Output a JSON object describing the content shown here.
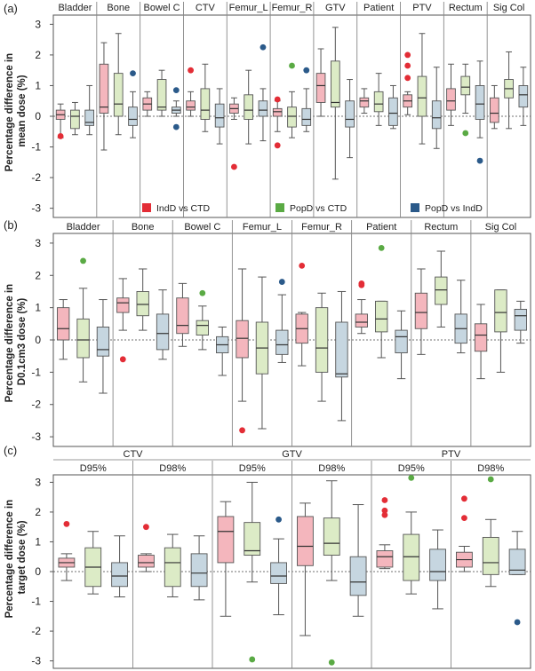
{
  "colors": {
    "IndD": "#f4b6bd",
    "PopD": "#dcebc6",
    "IndD2": "#c6d6e0",
    "IndDOut": "#e32d36",
    "PopDOut": "#5aaa44",
    "IndD2Out": "#2b5a8a"
  },
  "chart_data": [
    {
      "type": "boxplot",
      "panel_label": "(a)",
      "ylabel_lines": [
        "Percentage difference in",
        "mean dose (%)"
      ],
      "ylim": [
        -3.3,
        3.3
      ],
      "yticks": [
        -3,
        -2,
        -1,
        0,
        1,
        2,
        3
      ],
      "legend": [
        {
          "name": "IndD vs CTD",
          "color": "#e32d36"
        },
        {
          "name": "PopD vs CTD",
          "color": "#5aaa44"
        },
        {
          "name": "PopD vs IndD",
          "color": "#2b5a8a"
        }
      ],
      "categories": [
        "Bladder",
        "Bone",
        "Bowel C",
        "CTV",
        "Femur_L",
        "Femur_R",
        "GTV",
        "Patient",
        "PTV",
        "Rectum",
        "Sig Col"
      ],
      "boxes": [
        [
          [
            -0.7,
            -0.1,
            0.05,
            0.2,
            0.4,
            [
              -0.65
            ]
          ],
          [
            -0.6,
            -0.4,
            0,
            0.2,
            0.45,
            []
          ],
          [
            -0.6,
            -0.3,
            -0.2,
            0.2,
            1.0,
            []
          ]
        ],
        [
          [
            -1.1,
            0.1,
            0.3,
            1.7,
            2.4,
            []
          ],
          [
            -0.6,
            0,
            0.4,
            1.4,
            2.7,
            []
          ],
          [
            -0.7,
            -0.3,
            -0.1,
            0.3,
            0.8,
            [
              1.4
            ]
          ]
        ],
        [
          [
            0,
            0.2,
            0.4,
            0.6,
            0.8,
            []
          ],
          [
            0,
            0.2,
            0.3,
            1.2,
            1.5,
            []
          ],
          [
            0,
            0.1,
            0.2,
            0.3,
            0.5,
            [
              0.85,
              -0.35
            ]
          ]
        ],
        [
          [
            0,
            0.2,
            0.3,
            0.5,
            0.8,
            [
              1.5
            ]
          ],
          [
            -0.5,
            -0.1,
            0.2,
            0.9,
            1.7,
            []
          ],
          [
            -0.9,
            -0.35,
            -0.05,
            0.4,
            0.9,
            []
          ]
        ],
        [
          [
            -0.1,
            0.1,
            0.25,
            0.4,
            0.6,
            [
              -1.65
            ]
          ],
          [
            -0.9,
            -0.1,
            0.2,
            0.7,
            1.5,
            []
          ],
          [
            -0.8,
            0,
            0.2,
            0.5,
            0.9,
            [
              2.25
            ]
          ]
        ],
        [
          [
            -0.5,
            0,
            0.15,
            0.25,
            0.5,
            [
              0.55,
              -0.95
            ]
          ],
          [
            -0.7,
            -0.35,
            0,
            0.3,
            0.8,
            [
              1.65
            ]
          ],
          [
            -0.5,
            -0.3,
            -0.1,
            0.25,
            0.9,
            [
              1.5
            ]
          ]
        ],
        [
          [
            0,
            0.45,
            1.0,
            1.4,
            2.2,
            []
          ],
          [
            -2.05,
            0.3,
            0.45,
            1.8,
            2.9,
            []
          ],
          [
            -1.35,
            -0.35,
            -0.1,
            0.5,
            1.2,
            []
          ]
        ],
        [
          [
            0.1,
            0.3,
            0.5,
            0.6,
            0.9,
            []
          ],
          [
            -0.3,
            0.15,
            0.4,
            0.8,
            1.4,
            []
          ],
          [
            -0.4,
            -0.3,
            0.1,
            0.6,
            1.0,
            []
          ]
        ],
        [
          [
            0.05,
            0.3,
            0.5,
            0.7,
            0.8,
            [
              2.0,
              1.65,
              1.25
            ]
          ],
          [
            -0.9,
            0,
            0.6,
            1.3,
            2.7,
            []
          ],
          [
            -1.05,
            -0.4,
            -0.05,
            0.5,
            1.6,
            []
          ]
        ],
        [
          [
            -0.3,
            0.2,
            0.5,
            0.9,
            1.7,
            []
          ],
          [
            0.1,
            0.7,
            0.95,
            1.3,
            1.7,
            [
              -0.55
            ]
          ],
          [
            -0.7,
            -0.1,
            0.4,
            1.0,
            1.8,
            [
              -1.45
            ]
          ]
        ],
        [
          [
            -0.4,
            -0.2,
            0.1,
            0.6,
            1.0,
            []
          ],
          [
            -0.4,
            0.6,
            0.9,
            1.2,
            2.1,
            []
          ],
          [
            -0.3,
            0.3,
            0.7,
            1.0,
            1.6,
            []
          ]
        ]
      ]
    },
    {
      "type": "boxplot",
      "panel_label": "(b)",
      "ylabel_lines": [
        "Percentage difference in",
        "D0.1cm3 dose (%)"
      ],
      "ylim": [
        -3.3,
        3.3
      ],
      "yticks": [
        -3,
        -2,
        -1,
        0,
        1,
        2,
        3
      ],
      "categories": [
        "Bladder",
        "Bone",
        "Bowel C",
        "Femur_L",
        "Femur_R",
        "Patient",
        "Rectum",
        "Sig Col"
      ],
      "boxes": [
        [
          [
            -0.6,
            0,
            0.35,
            1.0,
            1.25,
            []
          ],
          [
            -1.3,
            -0.55,
            0,
            0.65,
            1.6,
            [
              2.45
            ]
          ],
          [
            -1.65,
            -0.5,
            -0.3,
            0.4,
            1.25,
            []
          ]
        ],
        [
          [
            0.3,
            0.85,
            1.15,
            1.3,
            1.9,
            [
              -0.6
            ]
          ],
          [
            0.3,
            0.75,
            1.1,
            1.5,
            2.2,
            []
          ],
          [
            -0.6,
            -0.3,
            0.2,
            0.8,
            1.55,
            []
          ]
        ],
        [
          [
            -0.2,
            0.2,
            0.45,
            1.3,
            1.75,
            []
          ],
          [
            -0.3,
            0.15,
            0.45,
            0.6,
            1.05,
            [
              1.45
            ]
          ],
          [
            -1.1,
            -0.4,
            -0.15,
            0.1,
            0.4,
            []
          ]
        ],
        [
          [
            -1.9,
            -0.55,
            0.05,
            0.6,
            2.2,
            [
              -2.8
            ]
          ],
          [
            -2.75,
            -1.05,
            -0.25,
            0.55,
            1.95,
            []
          ],
          [
            -0.7,
            -0.45,
            -0.15,
            0.3,
            1.4,
            [
              1.8
            ]
          ]
        ],
        [
          [
            -0.8,
            -0.1,
            0.35,
            0.8,
            0.85,
            [
              2.3
            ]
          ],
          [
            -1.9,
            -1.0,
            -0.25,
            1.0,
            1.45,
            []
          ],
          [
            -2.5,
            -1.15,
            -1.05,
            0.55,
            1.5,
            []
          ]
        ],
        [
          [
            0.2,
            0.4,
            0.55,
            0.8,
            1.25,
            [
              1.75,
              1.7
            ]
          ],
          [
            -0.55,
            0.25,
            0.65,
            1.2,
            1.2,
            [
              2.85
            ]
          ],
          [
            -1.2,
            -0.4,
            0.1,
            0.3,
            0.9,
            []
          ]
        ],
        [
          [
            -0.45,
            0.35,
            0.85,
            1.45,
            2.2,
            []
          ],
          [
            0.4,
            1.1,
            1.55,
            1.95,
            2.75,
            []
          ],
          [
            -0.4,
            -0.1,
            0.35,
            0.8,
            1.85,
            []
          ]
        ],
        [
          [
            -1.2,
            -0.35,
            0.15,
            0.5,
            1.1,
            []
          ],
          [
            -1.0,
            0.25,
            0.85,
            1.55,
            1.55,
            []
          ],
          [
            -0.1,
            0.3,
            0.75,
            0.95,
            1.2,
            []
          ]
        ]
      ]
    },
    {
      "type": "boxplot",
      "panel_label": "(c)",
      "ylabel_lines": [
        "Percentage difference in",
        "target dose (%)"
      ],
      "ylim": [
        -3.25,
        3.25
      ],
      "yticks": [
        -3,
        -2,
        -1,
        0,
        1,
        2,
        3
      ],
      "groups": [
        "CTV",
        "GTV",
        "PTV"
      ],
      "categories": [
        "D95%",
        "D98%",
        "D95%",
        "D98%",
        "D95%",
        "D98%"
      ],
      "boxes": [
        [
          [
            -0.3,
            0.15,
            0.3,
            0.45,
            0.6,
            [
              1.6
            ]
          ],
          [
            -0.75,
            -0.5,
            0.15,
            0.8,
            1.35,
            []
          ],
          [
            -0.85,
            -0.5,
            -0.15,
            0.3,
            1.2,
            []
          ]
        ],
        [
          [
            0,
            0.15,
            0.3,
            0.55,
            0.6,
            [
              1.5
            ]
          ],
          [
            -0.85,
            -0.5,
            0.3,
            0.8,
            1.25,
            []
          ],
          [
            -0.95,
            -0.5,
            -0.05,
            0.6,
            1.2,
            []
          ]
        ],
        [
          [
            -1.5,
            0.3,
            1.35,
            1.85,
            2.35,
            []
          ],
          [
            -0.35,
            0.55,
            0.7,
            1.65,
            3.0,
            [
              -2.95
            ]
          ],
          [
            -1.45,
            -0.4,
            -0.15,
            0.3,
            1.1,
            [
              1.75
            ]
          ]
        ],
        [
          [
            -2.15,
            0.2,
            0.85,
            1.85,
            2.3,
            []
          ],
          [
            -0.3,
            0.55,
            0.95,
            1.8,
            3.05,
            [
              -3.05
            ]
          ],
          [
            -1.5,
            -0.8,
            -0.35,
            0.5,
            2.25,
            []
          ]
        ],
        [
          [
            0.1,
            0.15,
            0.5,
            0.7,
            0.9,
            [
              2.4,
              2.05,
              1.9
            ]
          ],
          [
            -0.75,
            -0.3,
            0.5,
            1.25,
            2.0,
            [
              3.15
            ]
          ],
          [
            -1.25,
            -0.3,
            0,
            0.75,
            1.4,
            []
          ]
        ],
        [
          [
            0,
            0.15,
            0.4,
            0.65,
            0.85,
            [
              2.45,
              1.8
            ]
          ],
          [
            -0.5,
            -0.1,
            0.3,
            1.15,
            1.75,
            [
              3.1
            ]
          ],
          [
            -0.1,
            -0.1,
            0.05,
            0.75,
            1.35,
            [
              -1.7
            ]
          ]
        ]
      ]
    }
  ]
}
